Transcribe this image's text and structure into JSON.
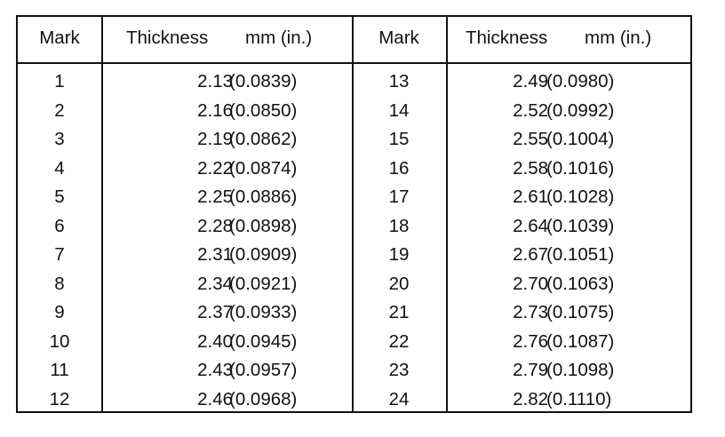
{
  "table": {
    "headers": {
      "mark": "Mark",
      "thickness_a": "Thickness",
      "unit_a": "mm (in.)",
      "mark2": "Mark",
      "thickness_b": "Thickness",
      "unit_b": "mm (in.)"
    },
    "left_rows": [
      {
        "mark": "1",
        "mm": "2.13",
        "in": "(0.0839)"
      },
      {
        "mark": "2",
        "mm": "2.16",
        "in": "(0.0850)"
      },
      {
        "mark": "3",
        "mm": "2.19",
        "in": "(0.0862)"
      },
      {
        "mark": "4",
        "mm": "2.22",
        "in": "(0.0874)"
      },
      {
        "mark": "5",
        "mm": "2.25",
        "in": "(0.0886)"
      },
      {
        "mark": "6",
        "mm": "2.28",
        "in": "(0.0898)"
      },
      {
        "mark": "7",
        "mm": "2.31",
        "in": "(0.0909)"
      },
      {
        "mark": "8",
        "mm": "2.34",
        "in": "(0.0921)"
      },
      {
        "mark": "9",
        "mm": "2.37",
        "in": "(0.0933)"
      },
      {
        "mark": "10",
        "mm": "2.40",
        "in": "(0.0945)"
      },
      {
        "mark": "11",
        "mm": "2.43",
        "in": "(0.0957)"
      },
      {
        "mark": "12",
        "mm": "2.46",
        "in": "(0.0968)"
      }
    ],
    "right_rows": [
      {
        "mark": "13",
        "mm": "2.49",
        "in": "(0.0980)"
      },
      {
        "mark": "14",
        "mm": "2.52",
        "in": "(0.0992)"
      },
      {
        "mark": "15",
        "mm": "2.55",
        "in": "(0.1004)"
      },
      {
        "mark": "16",
        "mm": "2.58",
        "in": "(0.1016)"
      },
      {
        "mark": "17",
        "mm": "2.61",
        "in": "(0.1028)"
      },
      {
        "mark": "18",
        "mm": "2.64",
        "in": "(0.1039)"
      },
      {
        "mark": "19",
        "mm": "2.67",
        "in": "(0.1051)"
      },
      {
        "mark": "20",
        "mm": "2.70",
        "in": "(0.1063)"
      },
      {
        "mark": "21",
        "mm": "2.73",
        "in": "(0.1075)"
      },
      {
        "mark": "22",
        "mm": "2.76",
        "in": "(0.1087)"
      },
      {
        "mark": "23",
        "mm": "2.79",
        "in": "(0.1098)"
      },
      {
        "mark": "24",
        "mm": "2.82",
        "in": "(0.1110)"
      }
    ]
  }
}
